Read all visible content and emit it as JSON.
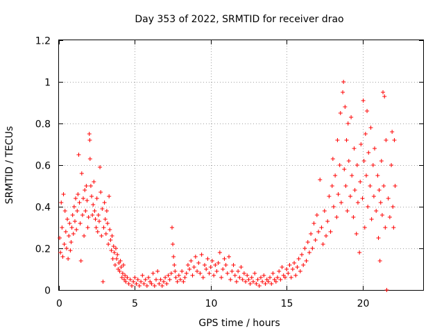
{
  "chart_data": {
    "type": "scatter",
    "title": "Day 353 of 2022, SRMTID for receiver drao",
    "xlabel": "GPS time / hours",
    "ylabel": "SRMTID / TECUs",
    "xlim": [
      0,
      24
    ],
    "ylim": [
      0,
      1.2
    ],
    "x_ticks": [
      0,
      5,
      10,
      15,
      20
    ],
    "y_ticks": [
      0,
      0.2,
      0.4,
      0.6,
      0.8,
      1.0,
      1.2
    ],
    "x_tick_labels": [
      "0",
      "5",
      "10",
      "15",
      "20"
    ],
    "y_tick_labels": [
      "0",
      "0.2",
      "0.4",
      "0.6",
      "0.8",
      "1",
      "1.2"
    ],
    "grid": true,
    "marker": "plus",
    "point_color": "#ff0000",
    "series": [
      {
        "name": "SRMTID",
        "points": [
          [
            0.05,
            0.25
          ],
          [
            0.1,
            0.18
          ],
          [
            0.15,
            0.42
          ],
          [
            0.2,
            0.3
          ],
          [
            0.25,
            0.16
          ],
          [
            0.3,
            0.46
          ],
          [
            0.35,
            0.22
          ],
          [
            0.4,
            0.38
          ],
          [
            0.45,
            0.28
          ],
          [
            0.5,
            0.2
          ],
          [
            0.55,
            0.34
          ],
          [
            0.6,
            0.15
          ],
          [
            0.65,
            0.26
          ],
          [
            0.7,
            0.32
          ],
          [
            0.75,
            0.19
          ],
          [
            0.8,
            0.23
          ],
          [
            0.85,
            0.3
          ],
          [
            0.9,
            0.36
          ],
          [
            0.95,
            0.27
          ],
          [
            1.0,
            0.4
          ],
          [
            1.05,
            0.33
          ],
          [
            1.1,
            0.44
          ],
          [
            1.15,
            0.29
          ],
          [
            1.2,
            0.38
          ],
          [
            1.25,
            0.46
          ],
          [
            1.3,
            0.65
          ],
          [
            1.35,
            0.42
          ],
          [
            1.4,
            0.32
          ],
          [
            1.45,
            0.14
          ],
          [
            1.5,
            0.56
          ],
          [
            1.55,
            0.36
          ],
          [
            1.6,
            0.44
          ],
          [
            1.65,
            0.26
          ],
          [
            1.7,
            0.48
          ],
          [
            1.75,
            0.38
          ],
          [
            1.8,
            0.5
          ],
          [
            1.85,
            0.43
          ],
          [
            1.9,
            0.3
          ],
          [
            1.95,
            0.35
          ],
          [
            2.0,
            0.75
          ],
          [
            2.03,
            0.72
          ],
          [
            2.05,
            0.63
          ],
          [
            2.1,
            0.5
          ],
          [
            2.15,
            0.45
          ],
          [
            2.2,
            0.36
          ],
          [
            2.25,
            0.41
          ],
          [
            2.3,
            0.52
          ],
          [
            2.35,
            0.38
          ],
          [
            2.4,
            0.34
          ],
          [
            2.45,
            0.3
          ],
          [
            2.5,
            0.44
          ],
          [
            2.55,
            0.28
          ],
          [
            2.6,
            0.36
          ],
          [
            2.65,
            0.33
          ],
          [
            2.7,
            0.59
          ],
          [
            2.75,
            0.47
          ],
          [
            2.8,
            0.26
          ],
          [
            2.85,
            0.39
          ],
          [
            2.9,
            0.04
          ],
          [
            2.95,
            0.3
          ],
          [
            3.0,
            0.42
          ],
          [
            3.05,
            0.34
          ],
          [
            3.1,
            0.27
          ],
          [
            3.15,
            0.38
          ],
          [
            3.2,
            0.32
          ],
          [
            3.25,
            0.22
          ],
          [
            3.3,
            0.45
          ],
          [
            3.35,
            0.29
          ],
          [
            3.4,
            0.24
          ],
          [
            3.45,
            0.19
          ],
          [
            3.5,
            0.26
          ],
          [
            3.55,
            0.15
          ],
          [
            3.6,
            0.21
          ],
          [
            3.65,
            0.18
          ],
          [
            3.7,
            0.12
          ],
          [
            3.75,
            0.2
          ],
          [
            3.8,
            0.15
          ],
          [
            3.85,
            0.17
          ],
          [
            3.9,
            0.1
          ],
          [
            3.95,
            0.13
          ],
          [
            4.0,
            0.09
          ],
          [
            4.05,
            0.14
          ],
          [
            4.1,
            0.11
          ],
          [
            4.15,
            0.06
          ],
          [
            4.2,
            0.08
          ],
          [
            4.25,
            0.12
          ],
          [
            4.3,
            0.05
          ],
          [
            4.35,
            0.07
          ],
          [
            4.4,
            0.04
          ],
          [
            4.5,
            0.06
          ],
          [
            4.6,
            0.03
          ],
          [
            4.7,
            0.05
          ],
          [
            4.8,
            0.02
          ],
          [
            4.9,
            0.04
          ],
          [
            5.0,
            0.06
          ],
          [
            5.1,
            0.03
          ],
          [
            5.2,
            0.05
          ],
          [
            5.3,
            0.02
          ],
          [
            5.4,
            0.04
          ],
          [
            5.5,
            0.07
          ],
          [
            5.6,
            0.03
          ],
          [
            5.7,
            0.05
          ],
          [
            5.8,
            0.02
          ],
          [
            5.9,
            0.06
          ],
          [
            6.0,
            0.04
          ],
          [
            6.1,
            0.03
          ],
          [
            6.2,
            0.08
          ],
          [
            6.3,
            0.02
          ],
          [
            6.4,
            0.05
          ],
          [
            6.5,
            0.09
          ],
          [
            6.6,
            0.03
          ],
          [
            6.7,
            0.05
          ],
          [
            6.8,
            0.02
          ],
          [
            6.9,
            0.04
          ],
          [
            7.0,
            0.06
          ],
          [
            7.1,
            0.03
          ],
          [
            7.2,
            0.07
          ],
          [
            7.3,
            0.05
          ],
          [
            7.4,
            0.08
          ],
          [
            7.45,
            0.3
          ],
          [
            7.5,
            0.22
          ],
          [
            7.55,
            0.16
          ],
          [
            7.6,
            0.12
          ],
          [
            7.65,
            0.09
          ],
          [
            7.7,
            0.06
          ],
          [
            7.8,
            0.04
          ],
          [
            7.9,
            0.07
          ],
          [
            8.0,
            0.05
          ],
          [
            8.1,
            0.09
          ],
          [
            8.2,
            0.04
          ],
          [
            8.3,
            0.06
          ],
          [
            8.4,
            0.08
          ],
          [
            8.5,
            0.12
          ],
          [
            8.6,
            0.1
          ],
          [
            8.7,
            0.14
          ],
          [
            8.8,
            0.07
          ],
          [
            8.9,
            0.11
          ],
          [
            9.0,
            0.16
          ],
          [
            9.1,
            0.09
          ],
          [
            9.2,
            0.13
          ],
          [
            9.3,
            0.08
          ],
          [
            9.4,
            0.17
          ],
          [
            9.5,
            0.06
          ],
          [
            9.6,
            0.12
          ],
          [
            9.7,
            0.1
          ],
          [
            9.8,
            0.15
          ],
          [
            9.9,
            0.08
          ],
          [
            10.0,
            0.11
          ],
          [
            10.1,
            0.14
          ],
          [
            10.2,
            0.07
          ],
          [
            10.3,
            0.12
          ],
          [
            10.4,
            0.09
          ],
          [
            10.5,
            0.13
          ],
          [
            10.6,
            0.18
          ],
          [
            10.7,
            0.06
          ],
          [
            10.8,
            0.1
          ],
          [
            10.9,
            0.15
          ],
          [
            11.0,
            0.12
          ],
          [
            11.1,
            0.08
          ],
          [
            11.2,
            0.16
          ],
          [
            11.3,
            0.05
          ],
          [
            11.4,
            0.09
          ],
          [
            11.5,
            0.12
          ],
          [
            11.6,
            0.07
          ],
          [
            11.7,
            0.04
          ],
          [
            11.8,
            0.09
          ],
          [
            11.9,
            0.06
          ],
          [
            12.0,
            0.11
          ],
          [
            12.1,
            0.05
          ],
          [
            12.2,
            0.08
          ],
          [
            12.3,
            0.04
          ],
          [
            12.4,
            0.07
          ],
          [
            12.5,
            0.05
          ],
          [
            12.6,
            0.03
          ],
          [
            12.7,
            0.06
          ],
          [
            12.8,
            0.04
          ],
          [
            12.9,
            0.08
          ],
          [
            13.0,
            0.03
          ],
          [
            13.1,
            0.05
          ],
          [
            13.2,
            0.02
          ],
          [
            13.3,
            0.06
          ],
          [
            13.4,
            0.04
          ],
          [
            13.5,
            0.07
          ],
          [
            13.6,
            0.03
          ],
          [
            13.7,
            0.05
          ],
          [
            13.8,
            0.04
          ],
          [
            13.9,
            0.06
          ],
          [
            14.0,
            0.03
          ],
          [
            14.1,
            0.08
          ],
          [
            14.2,
            0.05
          ],
          [
            14.3,
            0.04
          ],
          [
            14.4,
            0.06
          ],
          [
            14.5,
            0.09
          ],
          [
            14.6,
            0.05
          ],
          [
            14.7,
            0.11
          ],
          [
            14.8,
            0.07
          ],
          [
            14.9,
            0.06
          ],
          [
            15.0,
            0.1
          ],
          [
            15.1,
            0.08
          ],
          [
            15.2,
            0.12
          ],
          [
            15.3,
            0.06
          ],
          [
            15.4,
            0.1
          ],
          [
            15.5,
            0.13
          ],
          [
            15.6,
            0.07
          ],
          [
            15.7,
            0.11
          ],
          [
            15.8,
            0.15
          ],
          [
            15.9,
            0.09
          ],
          [
            16.0,
            0.17
          ],
          [
            16.1,
            0.12
          ],
          [
            16.2,
            0.2
          ],
          [
            16.3,
            0.14
          ],
          [
            16.4,
            0.23
          ],
          [
            16.5,
            0.18
          ],
          [
            16.6,
            0.27
          ],
          [
            16.7,
            0.2
          ],
          [
            16.8,
            0.32
          ],
          [
            16.9,
            0.24
          ],
          [
            17.0,
            0.36
          ],
          [
            17.1,
            0.28
          ],
          [
            17.2,
            0.53
          ],
          [
            17.3,
            0.3
          ],
          [
            17.4,
            0.22
          ],
          [
            17.5,
            0.38
          ],
          [
            17.6,
            0.26
          ],
          [
            17.7,
            0.33
          ],
          [
            17.8,
            0.45
          ],
          [
            17.9,
            0.28
          ],
          [
            18.0,
            0.5
          ],
          [
            18.05,
            0.63
          ],
          [
            18.1,
            0.4
          ],
          [
            18.2,
            0.55
          ],
          [
            18.3,
            0.35
          ],
          [
            18.35,
            0.72
          ],
          [
            18.4,
            0.46
          ],
          [
            18.5,
            0.6
          ],
          [
            18.55,
            0.85
          ],
          [
            18.6,
            0.42
          ],
          [
            18.7,
            0.95
          ],
          [
            18.75,
            1.0
          ],
          [
            18.8,
            0.58
          ],
          [
            18.85,
            0.88
          ],
          [
            18.9,
            0.5
          ],
          [
            18.95,
            0.72
          ],
          [
            19.0,
            0.38
          ],
          [
            19.05,
            0.8
          ],
          [
            19.1,
            0.62
          ],
          [
            19.2,
            0.45
          ],
          [
            19.25,
            0.83
          ],
          [
            19.3,
            0.55
          ],
          [
            19.4,
            0.35
          ],
          [
            19.45,
            0.68
          ],
          [
            19.5,
            0.48
          ],
          [
            19.6,
            0.27
          ],
          [
            19.65,
            0.6
          ],
          [
            19.7,
            0.42
          ],
          [
            19.8,
            0.18
          ],
          [
            19.85,
            0.52
          ],
          [
            19.9,
            0.7
          ],
          [
            20.0,
            0.44
          ],
          [
            20.05,
            0.91
          ],
          [
            20.1,
            0.62
          ],
          [
            20.15,
            0.3
          ],
          [
            20.2,
            0.75
          ],
          [
            20.25,
            0.55
          ],
          [
            20.3,
            0.86
          ],
          [
            20.35,
            0.4
          ],
          [
            20.4,
            0.66
          ],
          [
            20.5,
            0.5
          ],
          [
            20.55,
            0.78
          ],
          [
            20.6,
            0.34
          ],
          [
            20.7,
            0.6
          ],
          [
            20.75,
            0.45
          ],
          [
            20.8,
            0.68
          ],
          [
            20.9,
            0.38
          ],
          [
            21.0,
            0.55
          ],
          [
            21.05,
            0.25
          ],
          [
            21.1,
            0.48
          ],
          [
            21.15,
            0.14
          ],
          [
            21.2,
            0.42
          ],
          [
            21.25,
            0.62
          ],
          [
            21.3,
            0.36
          ],
          [
            21.35,
            0.95
          ],
          [
            21.4,
            0.5
          ],
          [
            21.45,
            0.93
          ],
          [
            21.5,
            0.3
          ],
          [
            21.55,
            0.72
          ],
          [
            21.6,
            0.0
          ],
          [
            21.7,
            0.44
          ],
          [
            21.8,
            0.35
          ],
          [
            21.9,
            0.6
          ],
          [
            21.95,
            0.76
          ],
          [
            22.0,
            0.4
          ],
          [
            22.05,
            0.3
          ],
          [
            22.1,
            0.72
          ],
          [
            22.15,
            0.5
          ]
        ]
      }
    ]
  }
}
